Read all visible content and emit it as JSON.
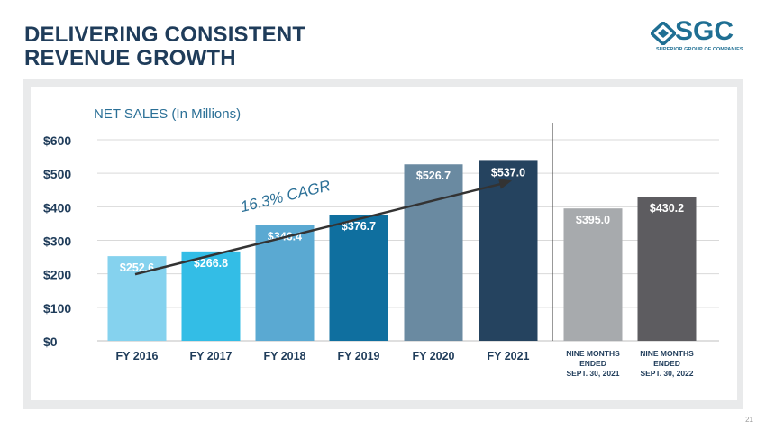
{
  "slide": {
    "title_line1": "DELIVERING CONSISTENT",
    "title_line2": "REVENUE GROWTH",
    "page_number": "21"
  },
  "logo": {
    "text": "SGC",
    "subtitle": "SUPERIOR GROUP OF COMPANIES"
  },
  "colors": {
    "title": "#1f3c5a",
    "chart_title": "#2a6f96",
    "annotation": "#2a6f96"
  },
  "chart_data": {
    "type": "bar",
    "title": "NET SALES (In Millions)",
    "xlabel": "",
    "ylabel": "",
    "ylim": [
      0,
      600
    ],
    "yticks": [
      0,
      100,
      200,
      300,
      400,
      500,
      600
    ],
    "ytick_labels": [
      "$0",
      "$100",
      "$200",
      "$300",
      "$400",
      "$500",
      "$600"
    ],
    "grid": true,
    "bars": [
      {
        "category": "FY 2016",
        "category_lines": [
          "FY 2016"
        ],
        "value": 252.6,
        "label": "$252.6",
        "color": "#85d2ee",
        "group": "annual"
      },
      {
        "category": "FY 2017",
        "category_lines": [
          "FY 2017"
        ],
        "value": 266.8,
        "label": "$266.8",
        "color": "#33bde6",
        "group": "annual"
      },
      {
        "category": "FY 2018",
        "category_lines": [
          "FY 2018"
        ],
        "value": 346.4,
        "label": "$346.4",
        "color": "#5aa9d2",
        "group": "annual"
      },
      {
        "category": "FY 2019",
        "category_lines": [
          "FY 2019"
        ],
        "value": 376.7,
        "label": "$376.7",
        "color": "#0f6f9f",
        "group": "annual"
      },
      {
        "category": "FY 2020",
        "category_lines": [
          "FY 2020"
        ],
        "value": 526.7,
        "label": "$526.7",
        "color": "#6a8aa1",
        "group": "annual"
      },
      {
        "category": "FY 2021",
        "category_lines": [
          "FY 2021"
        ],
        "value": 537.0,
        "label": "$537.0",
        "color": "#25435f",
        "group": "annual"
      },
      {
        "category": "NINE MONTHS ENDED SEPT. 30, 2021",
        "category_lines": [
          "NINE MONTHS",
          "ENDED",
          "SEPT. 30, 2021"
        ],
        "value": 395.0,
        "label": "$395.0",
        "color": "#a7aaad",
        "group": "nine_months"
      },
      {
        "category": "NINE MONTHS ENDED SEPT. 30, 2022",
        "category_lines": [
          "NINE MONTHS",
          "ENDED",
          "SEPT. 30, 2022"
        ],
        "value": 430.2,
        "label": "$430.2",
        "color": "#5d5c60",
        "group": "nine_months"
      }
    ],
    "annotation": {
      "text": "16.3% CAGR",
      "trend_start": 252.6,
      "trend_end": 537.0
    }
  }
}
